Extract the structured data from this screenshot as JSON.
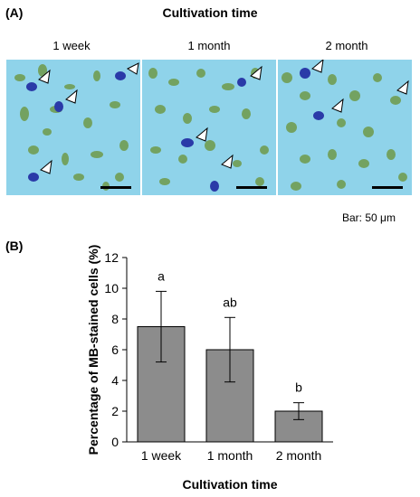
{
  "panel_a": {
    "label": "(A)",
    "title": "Cultivation time",
    "columns": [
      "1 week",
      "1 month",
      "2 month"
    ],
    "scale_bar_label": "Bar: 50 μm",
    "colors": {
      "background": "#8fd3ea",
      "cell": "#6f9a4a",
      "stained": "#2a3aa8"
    }
  },
  "panel_b": {
    "label": "(B)"
  },
  "chart_data": {
    "type": "bar",
    "categories": [
      "1 week",
      "1 month",
      "2 month"
    ],
    "values": [
      7.5,
      6.0,
      2.0
    ],
    "errors": [
      2.3,
      2.1,
      0.55
    ],
    "significance": [
      "a",
      "ab",
      "b"
    ],
    "xlabel": "Cultivation time",
    "ylabel": "Percentage of MB-stained cells (%)",
    "ylim": [
      0,
      12
    ],
    "yticks": [
      0,
      2,
      4,
      6,
      8,
      10,
      12
    ],
    "grid": false,
    "bar_color": "#8c8c8c"
  }
}
